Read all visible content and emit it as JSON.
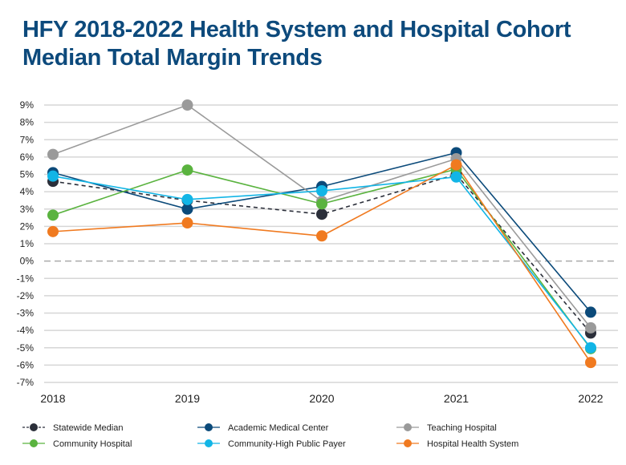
{
  "chart_data": {
    "type": "line",
    "title": "HFY 2018-2022 Health System and Hospital Cohort Median Total Margin Trends",
    "x": [
      "2018",
      "2019",
      "2020",
      "2021",
      "2022"
    ],
    "ylim": [
      -7,
      9
    ],
    "yticks": [
      "9%",
      "8%",
      "7%",
      "6%",
      "5%",
      "4%",
      "3%",
      "2%",
      "1%",
      "0%",
      "-1%",
      "-2%",
      "-3%",
      "-4%",
      "-5%",
      "-6%",
      "-7%"
    ],
    "grid": true,
    "legend_placement": "bottom",
    "series": [
      {
        "name": "Statewide Median",
        "color": "#2b2f3a",
        "dashed": true,
        "values": [
          4.6,
          3.5,
          2.7,
          5.0,
          -4.15
        ]
      },
      {
        "name": "Academic Medical Center",
        "color": "#0b4a7a",
        "values": [
          5.1,
          3.0,
          4.3,
          6.25,
          -2.95
        ]
      },
      {
        "name": "Teaching Hospital",
        "color": "#9a9a9a",
        "values": [
          6.15,
          9.0,
          3.45,
          5.9,
          -3.85
        ]
      },
      {
        "name": "Community Hospital",
        "color": "#5ab33f",
        "values": [
          2.65,
          5.25,
          3.3,
          5.3,
          -5.05
        ]
      },
      {
        "name": "Community-High Public Payer",
        "color": "#12b5e6",
        "values": [
          4.9,
          3.55,
          4.05,
          4.85,
          -5.0
        ]
      },
      {
        "name": "Hospital Health System",
        "color": "#f07a20",
        "values": [
          1.7,
          2.2,
          1.45,
          5.55,
          -5.85
        ]
      }
    ]
  }
}
